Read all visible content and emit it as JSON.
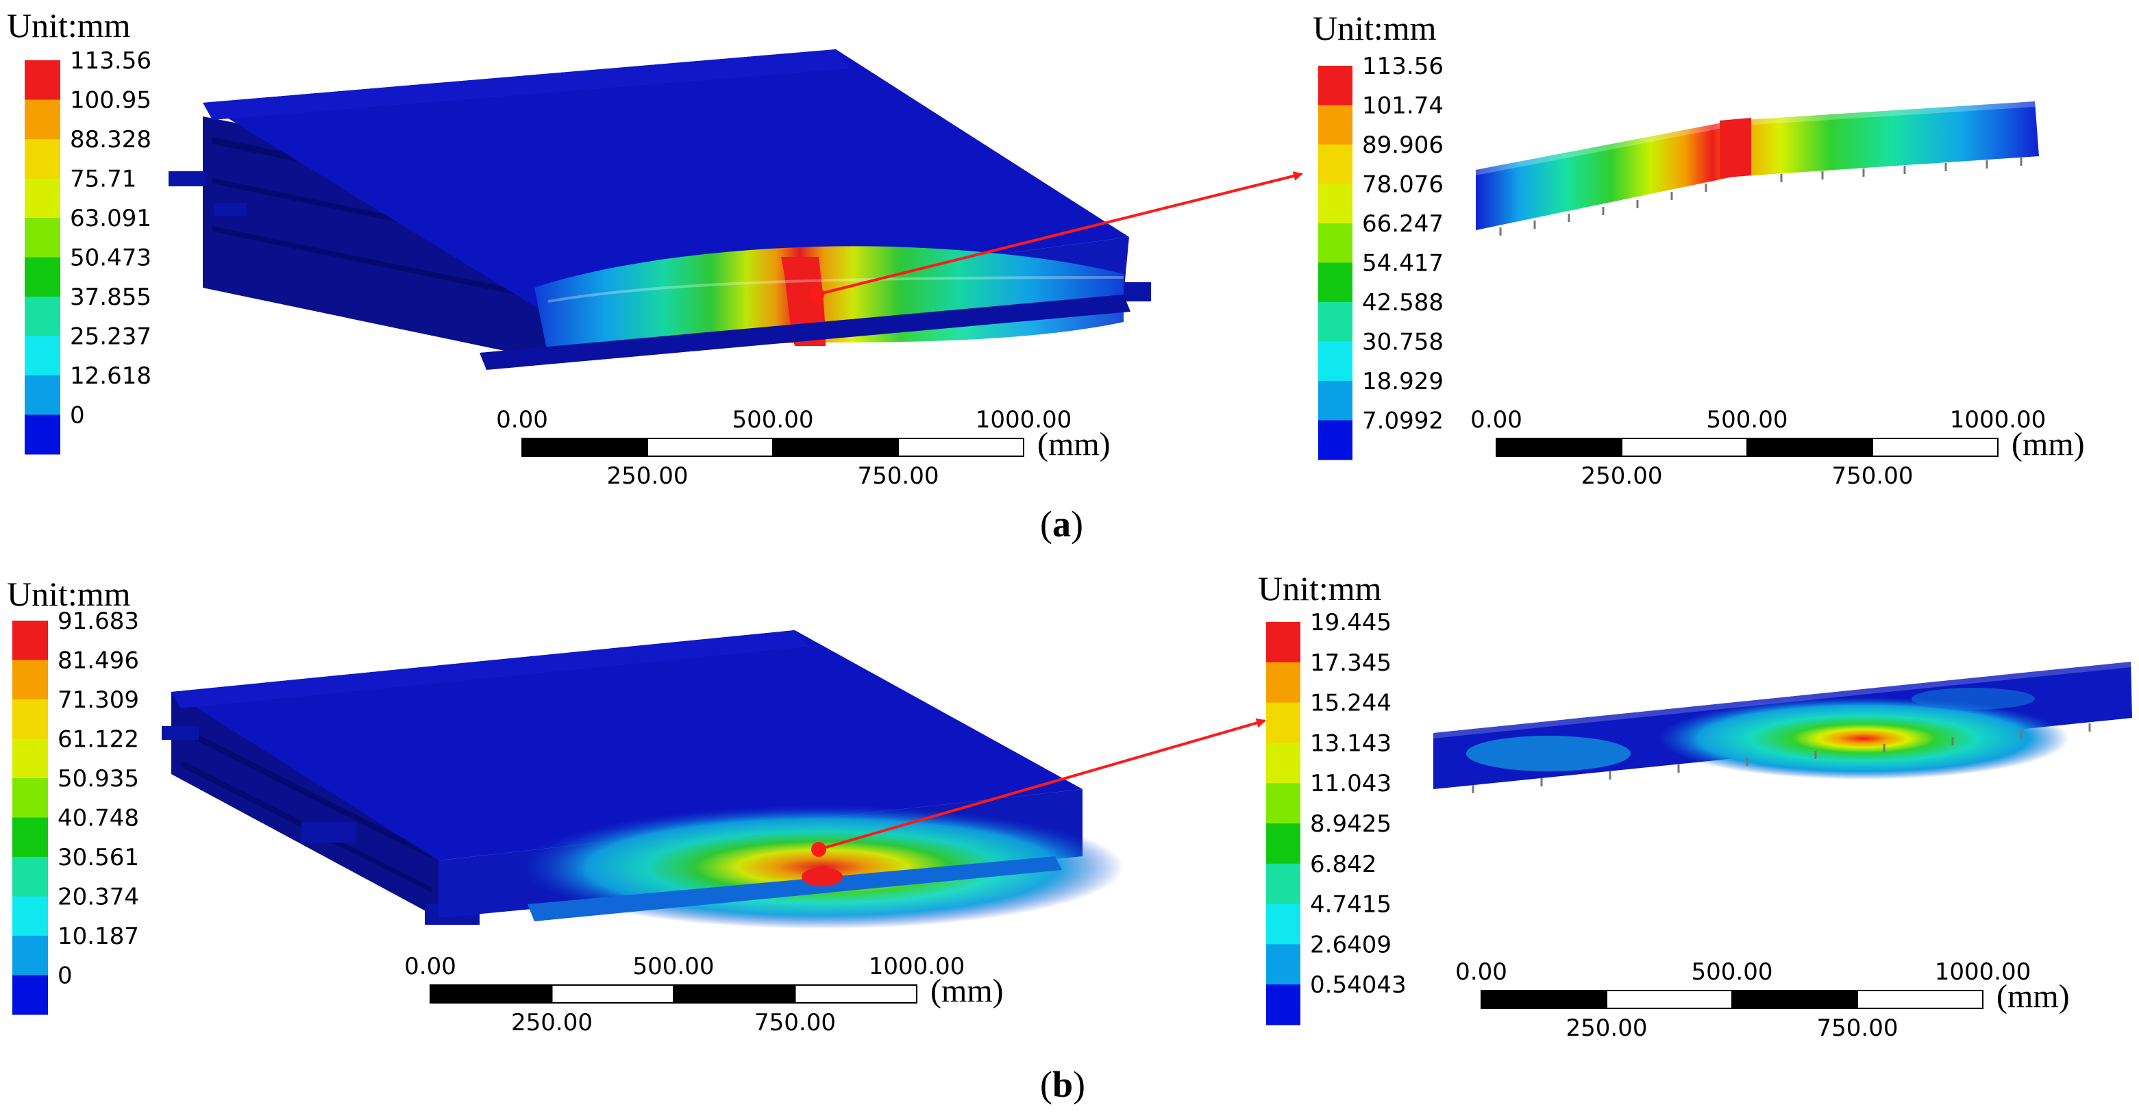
{
  "panels": [
    {
      "label": "a",
      "views": [
        {
          "unit": "Unit:mm",
          "legend_values": [
            "113.56",
            "100.95",
            "88.328",
            "75.71",
            "63.091",
            "50.473",
            "37.855",
            "25.237",
            "12.618",
            "0"
          ],
          "scale": {
            "ticks_top": [
              "0.00",
              "500.00",
              "1000.00"
            ],
            "ticks_bottom": [
              "250.00",
              "750.00"
            ],
            "unit": "(mm)"
          }
        },
        {
          "unit": "Unit:mm",
          "legend_values": [
            "113.56",
            "101.74",
            "89.906",
            "78.076",
            "66.247",
            "54.417",
            "42.588",
            "30.758",
            "18.929",
            "7.0992"
          ],
          "scale": {
            "ticks_top": [
              "0.00",
              "500.00",
              "1000.00"
            ],
            "ticks_bottom": [
              "250.00",
              "750.00"
            ],
            "unit": "(mm)"
          }
        }
      ]
    },
    {
      "label": "b",
      "views": [
        {
          "unit": "Unit:mm",
          "legend_values": [
            "91.683",
            "81.496",
            "71.309",
            "61.122",
            "50.935",
            "40.748",
            "30.561",
            "20.374",
            "10.187",
            "0"
          ],
          "scale": {
            "ticks_top": [
              "0.00",
              "500.00",
              "1000.00"
            ],
            "ticks_bottom": [
              "250.00",
              "750.00"
            ],
            "unit": "(mm)"
          }
        },
        {
          "unit": "Unit:mm",
          "legend_values": [
            "19.445",
            "17.345",
            "15.244",
            "13.143",
            "11.043",
            "8.9425",
            "6.842",
            "4.7415",
            "2.6409",
            "0.54043"
          ],
          "scale": {
            "ticks_top": [
              "0.00",
              "500.00",
              "1000.00"
            ],
            "ticks_bottom": [
              "250.00",
              "750.00"
            ],
            "unit": "(mm)"
          }
        }
      ]
    }
  ],
  "legend_colors": [
    "#ee1c1c",
    "#f5a000",
    "#f0d800",
    "#d8f000",
    "#80e800",
    "#10c810",
    "#18e0a0",
    "#10e8f0",
    "#0aa0e8",
    "#0010e0"
  ],
  "body_color": "#0c14b4",
  "arrow_color": "#ff1a1a"
}
